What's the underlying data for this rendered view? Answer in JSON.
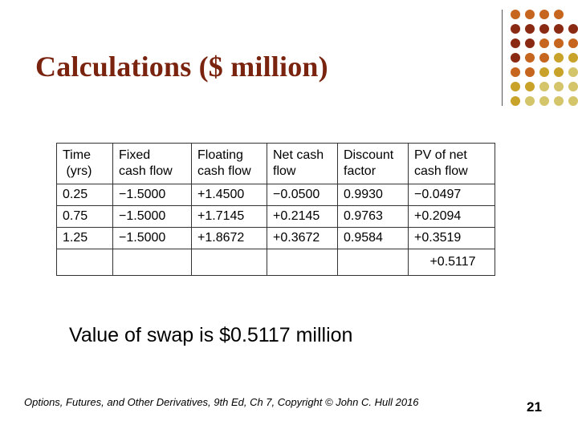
{
  "slide": {
    "title": "Calculations ($ million)",
    "summary": "Value of swap is $0.5117 million",
    "footer": "Options, Futures, and Other Derivatives, 9th Ed, Ch 7, Copyright © John C. Hull 2016",
    "page_number": "21",
    "accent_colors": [
      "#8b2a12",
      "#c6651e",
      "#c9a22a",
      "#d4c46a"
    ]
  },
  "table": {
    "headers": [
      [
        "Time",
        "(yrs)"
      ],
      [
        "Fixed",
        "cash flow"
      ],
      [
        "Floating",
        "cash flow"
      ],
      [
        "Net cash",
        "flow"
      ],
      [
        "Discount",
        "factor"
      ],
      [
        "PV of net",
        "cash flow"
      ]
    ],
    "rows": [
      [
        "0.25",
        "−1.5000",
        "+1.4500",
        "−0.0500",
        "0.9930",
        "−0.0497"
      ],
      [
        "0.75",
        "−1.5000",
        "+1.7145",
        "+0.2145",
        "0.9763",
        "+0.2094"
      ],
      [
        "1.25",
        "−1.5000",
        "+1.8672",
        "+0.3672",
        "0.9584",
        "+0.3519"
      ]
    ],
    "total": "+0.5117"
  }
}
